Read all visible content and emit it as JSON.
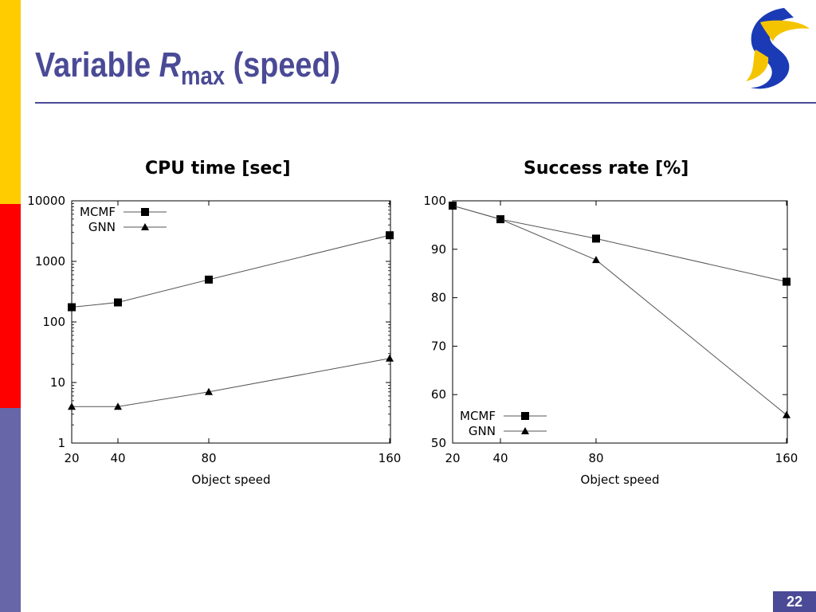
{
  "slide": {
    "title_prefix": "Variable ",
    "title_var": "R",
    "title_sub": "max",
    "title_suffix": " (speed)",
    "page_number": "22",
    "colors": {
      "accent": "#4a4a96",
      "stripe_yellow": "#ffcc00",
      "stripe_red": "#ff0000",
      "stripe_blue": "#6666a8"
    },
    "logo_icon": "swirl-logo-icon"
  },
  "chart_data": [
    {
      "type": "line",
      "title": "CPU time [sec]",
      "xlabel": "Object speed",
      "ylabel": "",
      "x": [
        20,
        40,
        80,
        160
      ],
      "x_ticks": [
        "20",
        "40",
        "80",
        "160"
      ],
      "y_scale": "log",
      "ylim": [
        1,
        10000
      ],
      "y_ticks": [
        "1",
        "10",
        "100",
        "1000",
        "10000"
      ],
      "legend": "top-left",
      "grid": false,
      "series": [
        {
          "name": "MCMF",
          "marker": "square",
          "values": [
            175,
            210,
            500,
            2700
          ]
        },
        {
          "name": "GNN",
          "marker": "triangle",
          "values": [
            4,
            4,
            7,
            25
          ]
        }
      ]
    },
    {
      "type": "line",
      "title": "Success rate [%]",
      "xlabel": "Object speed",
      "ylabel": "",
      "x": [
        20,
        40,
        80,
        160
      ],
      "x_ticks": [
        "20",
        "40",
        "80",
        "160"
      ],
      "y_scale": "linear",
      "ylim": [
        50,
        100
      ],
      "y_ticks": [
        "50",
        "60",
        "70",
        "80",
        "90",
        "100"
      ],
      "legend": "bottom-left",
      "grid": false,
      "series": [
        {
          "name": "MCMF",
          "marker": "square",
          "values": [
            99,
            96.2,
            92.2,
            83.3
          ]
        },
        {
          "name": "GNN",
          "marker": "triangle",
          "values": [
            99,
            96.2,
            87.8,
            55.8
          ]
        }
      ]
    }
  ]
}
